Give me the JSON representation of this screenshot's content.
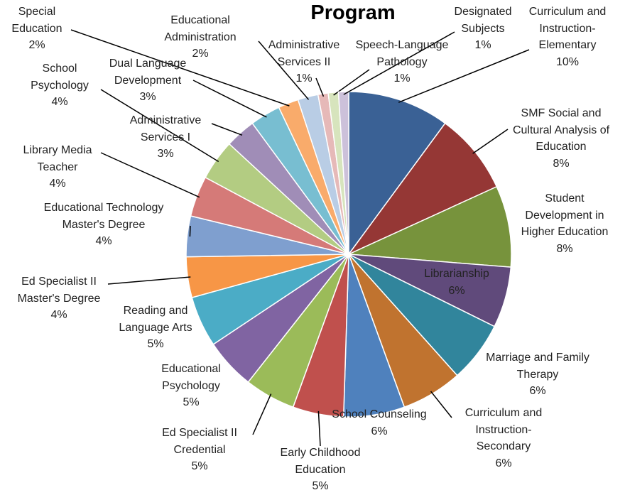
{
  "chart_data": {
    "type": "pie",
    "title": "Program",
    "categories": [
      "Curriculum and Instruction-Elementary",
      "SMF Social and Cultural Analysis of Education",
      "Student Development in Higher Education",
      "Librarianship",
      "Marriage and Family Therapy",
      "Curriculum and Instruction-Secondary",
      "School Counseling",
      "Early Childhood Education",
      "Ed Specialist II Credential",
      "Educational Psychology",
      "Reading and Language Arts",
      "Ed Specialist II Master's Degree",
      "Educational Technology Master's Degree",
      "Library Media Teacher",
      "School Psychology",
      "Administrative Services I",
      "Dual Language Development",
      "Special Education",
      "Educational Administration",
      "Administrative Services II",
      "Speech-Language Pathology",
      "Designated Subjects"
    ],
    "values": [
      10,
      8,
      8,
      6,
      6,
      6,
      6,
      5,
      5,
      5,
      5,
      4,
      4,
      4,
      4,
      3,
      3,
      2,
      2,
      1,
      1,
      1
    ],
    "value_labels": [
      "10%",
      "8%",
      "8%",
      "6%",
      "6%",
      "6%",
      "6%",
      "5%",
      "5%",
      "5%",
      "5%",
      "4%",
      "4%",
      "4%",
      "4%",
      "3%",
      "3%",
      "2%",
      "2%",
      "1%",
      "1%",
      "1%"
    ],
    "colors": [
      "#3A6195",
      "#953735",
      "#77933C",
      "#604A7B",
      "#31859C",
      "#C0732F",
      "#4F81BD",
      "#C0504D",
      "#9BBB59",
      "#8064A2",
      "#4BACC6",
      "#F79646",
      "#7F9FCF",
      "#D57A78",
      "#B3CC82",
      "#A08DB7",
      "#78BED1",
      "#F9AB6B",
      "#B9CDE5",
      "#E6B9B8",
      "#D7E4BD",
      "#CCC1DA"
    ]
  }
}
